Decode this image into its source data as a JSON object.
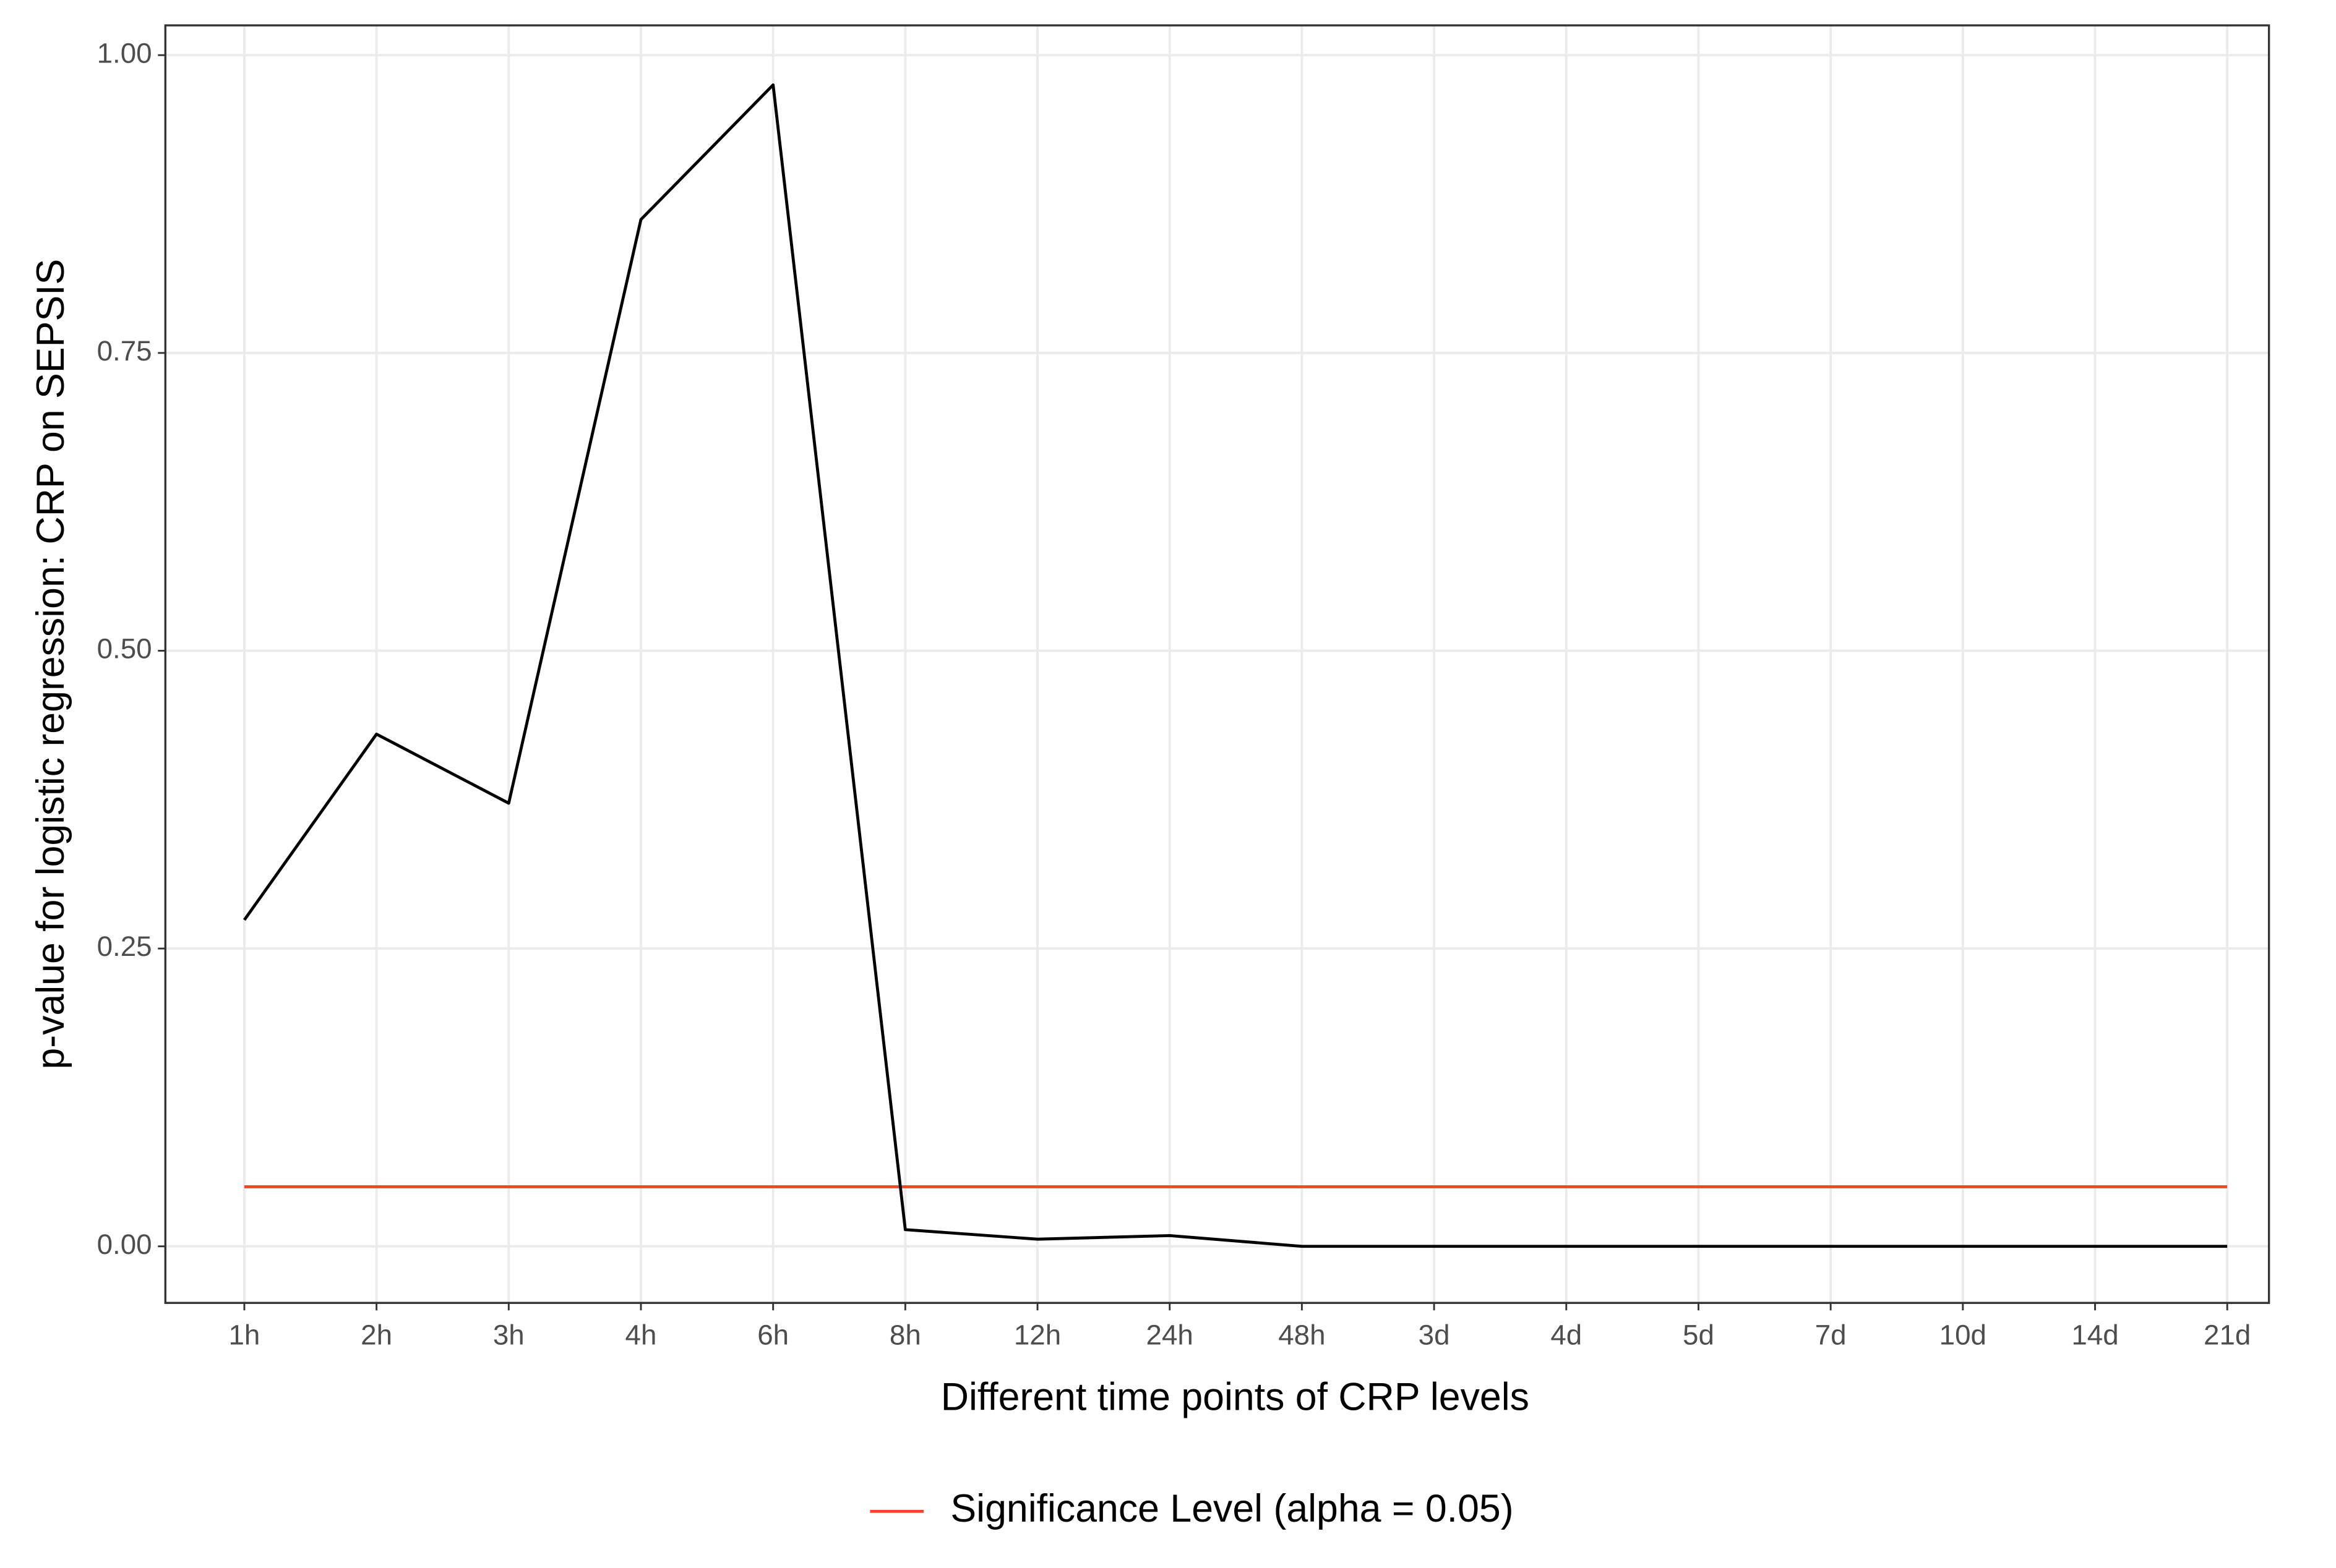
{
  "chart_data": {
    "type": "line",
    "x_label": "Different time points of CRP levels",
    "y_label": "p-value for logistic regression: CRP on SEPSIS",
    "categories": [
      "1h",
      "2h",
      "3h",
      "4h",
      "6h",
      "8h",
      "12h",
      "24h",
      "48h",
      "3d",
      "4d",
      "5d",
      "7d",
      "10d",
      "14d",
      "21d"
    ],
    "values": [
      0.274,
      0.43,
      0.372,
      0.862,
      0.975,
      0.014,
      0.006,
      0.009,
      0,
      0,
      0,
      0,
      0,
      0,
      0,
      0
    ],
    "color": "#000000",
    "hline": {
      "name": "Significance Level (alpha = 0.05)",
      "value": 0.05,
      "color": "#f8442c"
    },
    "ylim": [
      -0.0475,
      1.025
    ],
    "yticks": [
      {
        "value": 0,
        "label": "0.00"
      },
      {
        "value": 0.25,
        "label": "0.25"
      },
      {
        "value": 0.5,
        "label": "0.50"
      },
      {
        "value": 0.75,
        "label": "0.75"
      },
      {
        "value": 1,
        "label": "1.00"
      }
    ],
    "grid": true,
    "legend": "bottom"
  }
}
